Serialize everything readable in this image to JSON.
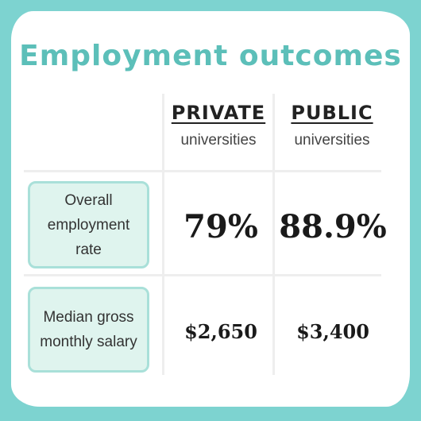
{
  "title": "Employment outcomes",
  "table": {
    "columns": [
      {
        "name": "PRIVATE",
        "subtitle": "universities"
      },
      {
        "name": "PUBLIC",
        "subtitle": "universities"
      }
    ],
    "rows": [
      {
        "label": "Overall employment rate",
        "values": [
          "79%",
          "88.9%"
        ]
      },
      {
        "label": "Median gross monthly salary",
        "values": [
          "$2,650",
          "$3,400"
        ]
      }
    ]
  }
}
